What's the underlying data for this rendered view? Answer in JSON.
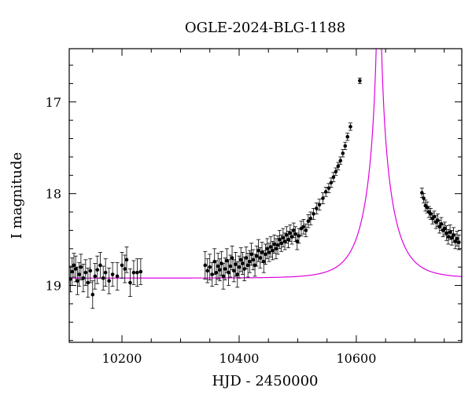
{
  "chart_data": {
    "type": "scatter",
    "title": "OGLE-2024-BLG-1188",
    "xlabel": "HJD - 2450000",
    "ylabel": "I magnitude",
    "xlim": [
      10110,
      10780
    ],
    "ylim": [
      19.62,
      16.42
    ],
    "y_inverted": true,
    "x_ticks": [
      10200,
      10400,
      10600
    ],
    "x_tick_labels": [
      "10200",
      "10400",
      "10600"
    ],
    "y_ticks": [
      17,
      18,
      19
    ],
    "y_tick_labels": [
      "17",
      "18",
      "19"
    ],
    "grid": false,
    "colors": {
      "points": "#000000",
      "model": "#e000e0"
    },
    "model_curve": {
      "t0": 10638.5,
      "u0": 0.01,
      "tE": 46,
      "base_mag": 18.92,
      "description_type": "point-lens fit"
    },
    "series": [
      {
        "kind": "observations",
        "points": [
          [
            10112,
            18.93,
            0.14
          ],
          [
            10115,
            18.85,
            0.15
          ],
          [
            10118,
            18.78,
            0.13
          ],
          [
            10121,
            18.82,
            0.14
          ],
          [
            10124,
            18.95,
            0.15
          ],
          [
            10127,
            18.88,
            0.13
          ],
          [
            10130,
            18.8,
            0.14
          ],
          [
            10134,
            18.92,
            0.15
          ],
          [
            10138,
            18.86,
            0.14
          ],
          [
            10142,
            18.97,
            0.16
          ],
          [
            10146,
            18.84,
            0.13
          ],
          [
            10150,
            19.1,
            0.15
          ],
          [
            10154,
            18.9,
            0.14
          ],
          [
            10158,
            18.83,
            0.15
          ],
          [
            10163,
            18.78,
            0.14
          ],
          [
            10168,
            18.92,
            0.13
          ],
          [
            10172,
            18.86,
            0.15
          ],
          [
            10178,
            18.95,
            0.14
          ],
          [
            10184,
            18.88,
            0.13
          ],
          [
            10192,
            18.9,
            0.15
          ],
          [
            10200,
            18.78,
            0.14
          ],
          [
            10205,
            18.82,
            0.15
          ],
          [
            10208,
            18.72,
            0.14
          ],
          [
            10214,
            18.97,
            0.15
          ],
          [
            10220,
            18.86,
            0.13
          ],
          [
            10226,
            18.86,
            0.15
          ],
          [
            10232,
            18.85,
            0.14
          ],
          [
            10342,
            18.78,
            0.15
          ],
          [
            10346,
            18.84,
            0.13
          ],
          [
            10350,
            18.8,
            0.14
          ],
          [
            10354,
            18.88,
            0.13
          ],
          [
            10358,
            18.74,
            0.14
          ],
          [
            10361,
            18.86,
            0.13
          ],
          [
            10364,
            18.79,
            0.14
          ],
          [
            10367,
            18.83,
            0.12
          ],
          [
            10370,
            18.76,
            0.13
          ],
          [
            10373,
            18.9,
            0.14
          ],
          [
            10376,
            18.82,
            0.12
          ],
          [
            10379,
            18.73,
            0.13
          ],
          [
            10382,
            18.86,
            0.14
          ],
          [
            10385,
            18.79,
            0.12
          ],
          [
            10388,
            18.7,
            0.13
          ],
          [
            10391,
            18.84,
            0.12
          ],
          [
            10394,
            18.77,
            0.13
          ],
          [
            10397,
            18.88,
            0.14
          ],
          [
            10400,
            18.8,
            0.12
          ],
          [
            10403,
            18.72,
            0.13
          ],
          [
            10406,
            18.76,
            0.12
          ],
          [
            10409,
            18.82,
            0.13
          ],
          [
            10412,
            18.7,
            0.12
          ],
          [
            10415,
            18.78,
            0.13
          ],
          [
            10418,
            18.74,
            0.12
          ],
          [
            10421,
            18.66,
            0.12
          ],
          [
            10424,
            18.72,
            0.11
          ],
          [
            10427,
            18.78,
            0.12
          ],
          [
            10430,
            18.68,
            0.11
          ],
          [
            10433,
            18.62,
            0.12
          ],
          [
            10436,
            18.7,
            0.11
          ],
          [
            10439,
            18.64,
            0.11
          ],
          [
            10442,
            18.74,
            0.12
          ],
          [
            10445,
            18.66,
            0.11
          ],
          [
            10448,
            18.6,
            0.11
          ],
          [
            10451,
            18.64,
            0.1
          ],
          [
            10454,
            18.58,
            0.11
          ],
          [
            10457,
            18.62,
            0.1
          ],
          [
            10460,
            18.55,
            0.1
          ],
          [
            10463,
            18.6,
            0.11
          ],
          [
            10466,
            18.56,
            0.1
          ],
          [
            10469,
            18.5,
            0.1
          ],
          [
            10472,
            18.54,
            0.09
          ],
          [
            10475,
            18.48,
            0.1
          ],
          [
            10478,
            18.52,
            0.09
          ],
          [
            10481,
            18.45,
            0.09
          ],
          [
            10484,
            18.5,
            0.09
          ],
          [
            10487,
            18.43,
            0.09
          ],
          [
            10490,
            18.47,
            0.08
          ],
          [
            10493,
            18.4,
            0.08
          ],
          [
            10496,
            18.44,
            0.08
          ],
          [
            10499,
            18.52,
            0.09
          ],
          [
            10502,
            18.46,
            0.08
          ],
          [
            10506,
            18.38,
            0.08
          ],
          [
            10510,
            18.36,
            0.08
          ],
          [
            10514,
            18.4,
            0.07
          ],
          [
            10518,
            18.3,
            0.07
          ],
          [
            10522,
            18.27,
            0.07
          ],
          [
            10527,
            18.22,
            0.06
          ],
          [
            10532,
            18.16,
            0.06
          ],
          [
            10537,
            18.12,
            0.06
          ],
          [
            10543,
            18.05,
            0.06
          ],
          [
            10548,
            17.98,
            0.05
          ],
          [
            10553,
            17.94,
            0.05
          ],
          [
            10557,
            17.88,
            0.05
          ],
          [
            10561,
            17.82,
            0.05
          ],
          [
            10565,
            17.76,
            0.04
          ],
          [
            10569,
            17.7,
            0.04
          ],
          [
            10573,
            17.64,
            0.04
          ],
          [
            10577,
            17.56,
            0.04
          ],
          [
            10581,
            17.48,
            0.04
          ],
          [
            10585,
            17.38,
            0.04
          ],
          [
            10590,
            17.27,
            0.04
          ],
          [
            10606,
            16.77,
            0.03
          ],
          [
            10712,
            17.99,
            0.05
          ],
          [
            10715,
            18.05,
            0.05
          ],
          [
            10718,
            18.13,
            0.06
          ],
          [
            10721,
            18.15,
            0.06
          ],
          [
            10724,
            18.2,
            0.06
          ],
          [
            10727,
            18.22,
            0.06
          ],
          [
            10730,
            18.27,
            0.06
          ],
          [
            10733,
            18.25,
            0.06
          ],
          [
            10736,
            18.31,
            0.07
          ],
          [
            10739,
            18.29,
            0.07
          ],
          [
            10742,
            18.36,
            0.07
          ],
          [
            10745,
            18.33,
            0.07
          ],
          [
            10748,
            18.4,
            0.07
          ],
          [
            10751,
            18.38,
            0.07
          ],
          [
            10754,
            18.43,
            0.08
          ],
          [
            10757,
            18.47,
            0.08
          ],
          [
            10760,
            18.42,
            0.08
          ],
          [
            10763,
            18.48,
            0.08
          ],
          [
            10766,
            18.45,
            0.08
          ],
          [
            10769,
            18.52,
            0.08
          ],
          [
            10772,
            18.49,
            0.08
          ],
          [
            10775,
            18.53,
            0.08
          ]
        ]
      }
    ]
  }
}
